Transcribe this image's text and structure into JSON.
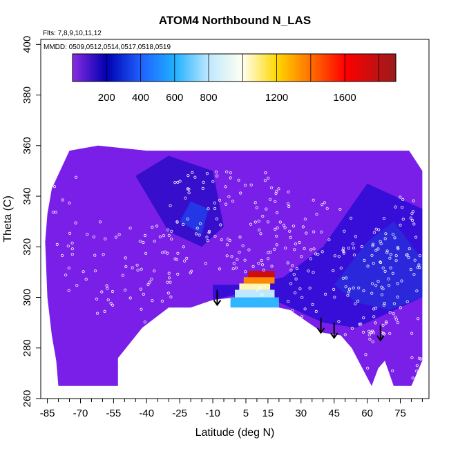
{
  "chart_data": {
    "type": "heatmap",
    "title": "ATOM4 Northbound N_LAS",
    "annotations": {
      "flights": "Flts: 7,8,9,10,11,12",
      "dates": "MMDD: 0509,0512,0514,0517,0518,0519"
    },
    "xlabel": "Latitude (deg N)",
    "ylabel": "Theta (C)",
    "xlim": [
      -88,
      88
    ],
    "ylim": [
      260,
      402
    ],
    "x_ticks": [
      -85,
      -70,
      -55,
      -40,
      -25,
      -10,
      5,
      15,
      30,
      45,
      60,
      75
    ],
    "y_ticks": [
      260,
      280,
      300,
      320,
      340,
      360,
      380,
      400
    ],
    "colorbar": {
      "range": [
        0,
        1900
      ],
      "ticks": [
        200,
        400,
        600,
        800,
        1200,
        1600
      ],
      "stops": [
        {
          "v": 0,
          "color": "#8a2be2"
        },
        {
          "v": 200,
          "color": "#0000b0"
        },
        {
          "v": 400,
          "color": "#1e60ff"
        },
        {
          "v": 600,
          "color": "#20b0ff"
        },
        {
          "v": 800,
          "color": "#bfe8ff"
        },
        {
          "v": 1000,
          "color": "#fffff0"
        },
        {
          "v": 1200,
          "color": "#ffd800"
        },
        {
          "v": 1400,
          "color": "#ff7000"
        },
        {
          "v": 1600,
          "color": "#ff0000"
        },
        {
          "v": 1900,
          "color": "#9b1b1b"
        }
      ]
    },
    "field": {
      "base_color": "#7a1fe8",
      "outline": [
        [
          -80,
          265
        ],
        [
          -53,
          265
        ],
        [
          -53,
          276
        ],
        [
          -42,
          288
        ],
        [
          -30,
          296
        ],
        [
          -20,
          296
        ],
        [
          -10,
          299
        ],
        [
          0,
          300
        ],
        [
          10,
          299
        ],
        [
          20,
          296
        ],
        [
          25,
          295
        ],
        [
          40,
          286
        ],
        [
          48,
          285
        ],
        [
          53,
          280
        ],
        [
          62,
          265
        ],
        [
          65,
          272
        ],
        [
          68,
          275
        ],
        [
          72,
          265
        ],
        [
          80,
          265
        ],
        [
          85,
          275
        ],
        [
          85,
          350
        ],
        [
          79,
          358
        ],
        [
          62,
          358
        ],
        [
          20,
          358
        ],
        [
          -40,
          358
        ],
        [
          -62,
          360
        ],
        [
          -75,
          358
        ],
        [
          -83,
          343
        ],
        [
          -85,
          333
        ],
        [
          -86,
          322
        ],
        [
          -85,
          300
        ],
        [
          -83,
          285
        ],
        [
          -81,
          275
        ]
      ],
      "patches": [
        {
          "color": "#0000c8",
          "opacity": 0.55,
          "poly": [
            [
              -10,
              299
            ],
            [
              0,
              301
            ],
            [
              20,
              298
            ],
            [
              40,
              290
            ],
            [
              55,
              288
            ],
            [
              85,
              300
            ],
            [
              85,
              335
            ],
            [
              60,
              345
            ],
            [
              40,
              320
            ],
            [
              22,
              308
            ],
            [
              5,
              305
            ],
            [
              -10,
              305
            ]
          ]
        },
        {
          "color": "#0000b4",
          "opacity": 0.55,
          "poly": [
            [
              -45,
              348
            ],
            [
              -30,
              356
            ],
            [
              -10,
              350
            ],
            [
              -5,
              328
            ],
            [
              -15,
              320
            ],
            [
              -30,
              326
            ]
          ]
        },
        {
          "color": "#2040e0",
          "opacity": 0.5,
          "poly": [
            [
              45,
              305
            ],
            [
              60,
              322
            ],
            [
              72,
              330
            ],
            [
              85,
              315
            ],
            [
              85,
              300
            ],
            [
              70,
              295
            ],
            [
              55,
              298
            ]
          ]
        },
        {
          "color": "#1060ff",
          "opacity": 0.5,
          "poly": [
            [
              -25,
              330
            ],
            [
              -20,
              338
            ],
            [
              -12,
              335
            ],
            [
              -15,
              325
            ]
          ]
        }
      ],
      "hotspot": {
        "lat": [
          -2,
          20
        ],
        "theta": [
          296,
          312
        ],
        "rows": [
          {
            "lat": [
              6,
              18
            ],
            "theta": [
              308,
              310.5
            ],
            "value": 1750
          },
          {
            "lat": [
              4,
              18
            ],
            "theta": [
              305.5,
              308
            ],
            "value": 1350
          },
          {
            "lat": [
              2,
              16
            ],
            "theta": [
              303,
              305.5
            ],
            "value": 1050
          },
          {
            "lat": [
              0,
              18
            ],
            "theta": [
              300,
              303
            ],
            "value": 800
          },
          {
            "lat": [
              -2,
              20
            ],
            "theta": [
              296,
              300
            ],
            "value": 620
          }
        ]
      }
    },
    "arrows": [
      {
        "lat": -8,
        "theta_top": 303,
        "theta_tip": 297
      },
      {
        "lat": 39,
        "theta_top": 292,
        "theta_tip": 286
      },
      {
        "lat": 45,
        "theta_top": 290,
        "theta_tip": 284
      },
      {
        "lat": 66,
        "theta_top": 289,
        "theta_tip": 283
      }
    ]
  }
}
